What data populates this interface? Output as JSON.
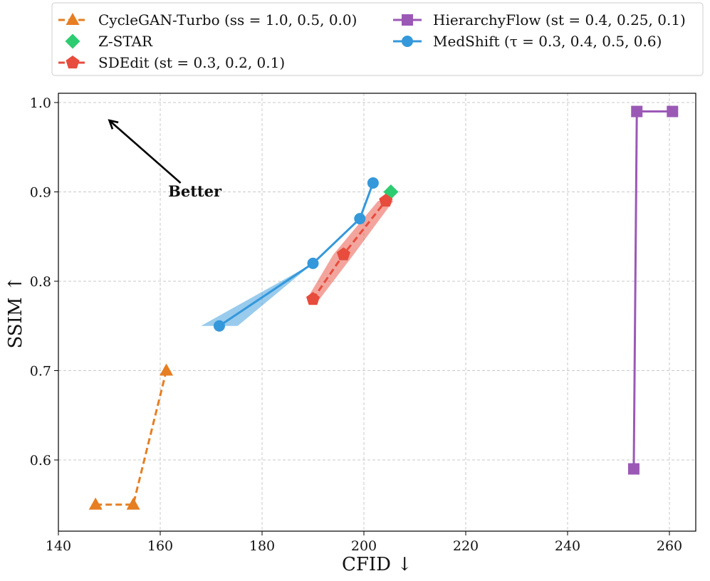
{
  "chart_data": {
    "type": "scatter",
    "xlabel": "CFID ↓",
    "ylabel": "SSIM ↑",
    "xlim": [
      140,
      265
    ],
    "ylim": [
      0.52,
      1.01
    ],
    "xticks": [
      140,
      160,
      180,
      200,
      220,
      240,
      260
    ],
    "yticks": [
      0.6,
      0.7,
      0.8,
      0.9,
      1.0
    ],
    "xtick_labels": [
      "140",
      "160",
      "180",
      "200",
      "220",
      "240",
      "260"
    ],
    "ytick_labels": [
      "0.6",
      "0.7",
      "0.8",
      "0.9",
      "1.0"
    ],
    "grid": true,
    "legend_position": "top, above plot, two columns",
    "annotation": {
      "text": "Better",
      "arrow_from": [
        164,
        0.91
      ],
      "arrow_to": [
        150,
        0.98
      ]
    },
    "series": [
      {
        "name": "CycleGAN-Turbo (ss = 1.0, 0.5, 0.0)",
        "color": "#e67e22",
        "marker": "triangle",
        "line": "dashed",
        "x": [
          147.3,
          154.7,
          161.2
        ],
        "y": [
          0.55,
          0.55,
          0.7
        ]
      },
      {
        "name": "Z-STAR",
        "color": "#2ecc71",
        "marker": "diamond",
        "line": "none",
        "x": [
          205.3
        ],
        "y": [
          0.9
        ]
      },
      {
        "name": "SDEdit (st = 0.3, 0.2, 0.1)",
        "color": "#e74c3c",
        "marker": "pentagon",
        "line": "dashed",
        "x": [
          190.0,
          196.0,
          204.3
        ],
        "y": [
          0.78,
          0.83,
          0.89
        ],
        "band_lower_x": [
          188.8,
          194.0,
          202.8
        ],
        "band_upper_x": [
          191.3,
          198.0,
          205.8
        ]
      },
      {
        "name": "HierarchyFlow (st = 0.4, 0.25, 0.1)",
        "color": "#9b59b6",
        "marker": "square",
        "line": "solid",
        "x": [
          253.0,
          253.6,
          260.6
        ],
        "y": [
          0.59,
          0.99,
          0.99
        ]
      },
      {
        "name": "MedShift (τ = 0.3, 0.4, 0.5, 0.6)",
        "color": "#3498db",
        "marker": "circle",
        "line": "solid",
        "x": [
          171.6,
          190.0,
          199.2,
          201.8
        ],
        "y": [
          0.75,
          0.82,
          0.87,
          0.91
        ],
        "band_lower_x": [
          168.0,
          190.0,
          199.2,
          201.8
        ],
        "band_upper_x": [
          175.2,
          190.0,
          199.2,
          201.8
        ]
      }
    ]
  }
}
